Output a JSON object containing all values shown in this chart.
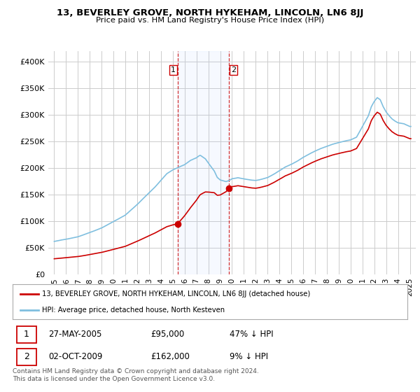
{
  "title": "13, BEVERLEY GROVE, NORTH HYKEHAM, LINCOLN, LN6 8JJ",
  "subtitle": "Price paid vs. HM Land Registry's House Price Index (HPI)",
  "legend_line1": "13, BEVERLEY GROVE, NORTH HYKEHAM, LINCOLN, LN6 8JJ (detached house)",
  "legend_line2": "HPI: Average price, detached house, North Kesteven",
  "transaction1_date": "27-MAY-2005",
  "transaction1_price": "£95,000",
  "transaction1_hpi": "47% ↓ HPI",
  "transaction1_year": 2005.4,
  "transaction1_value": 95000,
  "transaction2_date": "02-OCT-2009",
  "transaction2_price": "£162,000",
  "transaction2_hpi": "9% ↓ HPI",
  "transaction2_year": 2009.75,
  "transaction2_value": 162000,
  "footer": "Contains HM Land Registry data © Crown copyright and database right 2024.\nThis data is licensed under the Open Government Licence v3.0.",
  "background_color": "#ffffff",
  "plot_background": "#ffffff",
  "grid_color": "#cccccc",
  "hpi_line_color": "#7fbfdf",
  "price_line_color": "#cc0000",
  "vline_color": "#cc0000",
  "marker_color": "#cc0000",
  "ylim": [
    0,
    420000
  ],
  "yticks": [
    0,
    50000,
    100000,
    150000,
    200000,
    250000,
    300000,
    350000,
    400000
  ],
  "xlim_start": 1994.5,
  "xlim_end": 2025.5,
  "xtick_years": [
    1995,
    1996,
    1997,
    1998,
    1999,
    2000,
    2001,
    2002,
    2003,
    2004,
    2005,
    2006,
    2007,
    2008,
    2009,
    2010,
    2011,
    2012,
    2013,
    2014,
    2015,
    2016,
    2017,
    2018,
    2019,
    2020,
    2021,
    2022,
    2023,
    2024,
    2025
  ]
}
